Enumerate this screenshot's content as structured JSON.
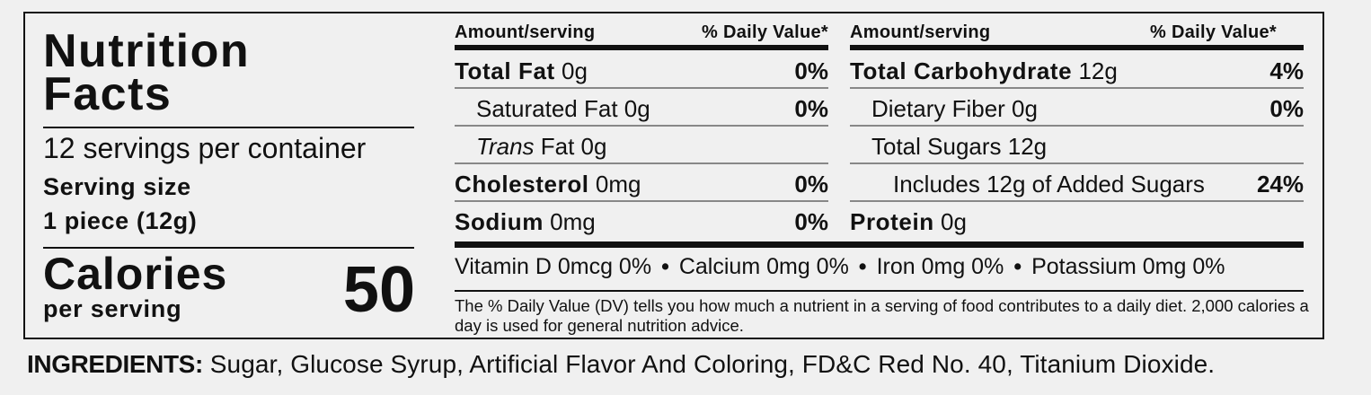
{
  "panel": {
    "title_line1": "Nutrition",
    "title_line2": "Facts",
    "servings_per_container": "12 servings per container",
    "serving_size_label": "Serving size",
    "serving_size_value": "1 piece (12g)",
    "calories_label": "Calories",
    "calories_sub": "per serving",
    "calories_value": "50"
  },
  "header": {
    "amount": "Amount/serving",
    "dv": "% Daily Value*"
  },
  "left_rows": [
    {
      "name": "Total Fat",
      "amount": " 0g",
      "dv": "0%"
    },
    {
      "name": "Saturated Fat",
      "amount": " 0g",
      "dv": "0%"
    },
    {
      "name_italic": "Trans",
      "amount": " Fat 0g",
      "dv": ""
    },
    {
      "name": "Cholesterol",
      "amount": " 0mg",
      "dv": "0%"
    },
    {
      "name": "Sodium",
      "amount": " 0mg",
      "dv": "0%"
    }
  ],
  "right_rows": [
    {
      "name": "Total Carbohydrate",
      "amount": " 12g",
      "dv": "4%"
    },
    {
      "name": "Dietary Fiber",
      "amount": " 0g",
      "dv": "0%"
    },
    {
      "name": "Total Sugars",
      "amount": " 12g",
      "dv": ""
    },
    {
      "name": "Includes 12g of Added Sugars",
      "amount": "",
      "dv": "24%"
    },
    {
      "name": "Protein",
      "amount": " 0g",
      "dv": ""
    }
  ],
  "vitamins": [
    "Vitamin D 0mcg 0%",
    "Calcium 0mg 0%",
    "Iron 0mg 0%",
    "Potassium 0mg 0%"
  ],
  "vitamin_separator": "•",
  "footnote": "The % Daily Value (DV) tells you how much a nutrient in a serving of food contributes to a daily diet. 2,000 calories a day is used for general nutrition advice.",
  "ingredients": {
    "label": "INGREDIENTS:",
    "text": " Sugar, Glucose Syrup, Artificial Flavor And Coloring, FD&C Red No. 40, Titanium Dioxide."
  }
}
